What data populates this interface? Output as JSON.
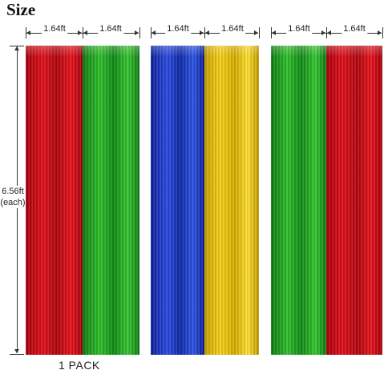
{
  "title": "Size",
  "width_labels": [
    "1.64ft",
    "1.64ft",
    "1.64ft",
    "1.64ft",
    "1.64ft",
    "1.64ft"
  ],
  "height_label": {
    "line1": "6.56ft",
    "line2": "(each)"
  },
  "pack_label": "1 PACK",
  "curtains": [
    {
      "name": "red-curtain",
      "color": "#d80c16"
    },
    {
      "name": "green-curtain",
      "color": "#25b524"
    },
    {
      "name": "blue-curtain",
      "color": "#1f3ed0"
    },
    {
      "name": "yellow-curtain",
      "color": "#f2cc12"
    },
    {
      "name": "green-curtain",
      "color": "#25b524"
    },
    {
      "name": "red-curtain",
      "color": "#d80c16"
    }
  ]
}
